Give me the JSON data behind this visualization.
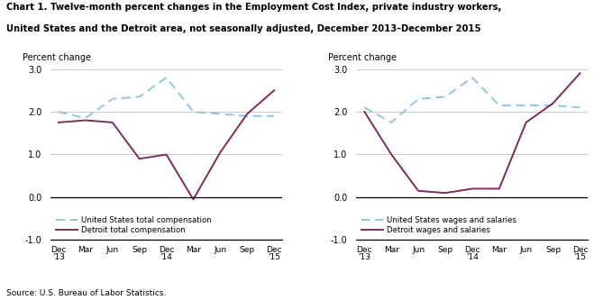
{
  "title_line1": "Chart 1. Twelve-month percent changes in the Employment Cost Index, private industry workers,",
  "title_line2": "United States and the Detroit area, not seasonally adjusted, December 2013–December 2015",
  "ylabel": "Percent change",
  "source": "Source: U.S. Bureau of Labor Statistics.",
  "xlabels": [
    "Dec\n'13",
    "Mar",
    "Jun",
    "Sep",
    "Dec\n'14",
    "Mar",
    "Jun",
    "Sep",
    "Dec\n'15"
  ],
  "ylim": [
    -1.0,
    3.0
  ],
  "yticks": [
    -1.0,
    0.0,
    1.0,
    2.0,
    3.0
  ],
  "ytick_labels": [
    "-1.0",
    "0.0",
    "1.0",
    "2.0",
    "3.0"
  ],
  "us_total_comp": [
    2.0,
    1.85,
    2.3,
    2.35,
    2.8,
    2.0,
    1.95,
    1.9,
    1.9
  ],
  "detroit_total_comp": [
    1.75,
    1.8,
    1.75,
    0.9,
    1.0,
    -0.05,
    1.05,
    1.95,
    2.5
  ],
  "us_wages": [
    2.1,
    1.75,
    2.3,
    2.35,
    2.8,
    2.15,
    2.15,
    2.15,
    2.1
  ],
  "detroit_wages": [
    2.0,
    1.0,
    0.15,
    0.1,
    0.2,
    0.2,
    1.75,
    2.2,
    2.9
  ],
  "us_color": "#92C5DE",
  "detroit_color": "#7B2D5E",
  "us_linestyle": "--",
  "detroit_linestyle": "-",
  "linewidth": 1.4,
  "legend1_us": "United States total compensation",
  "legend1_detroit": "Detroit total compensation",
  "legend2_us": "United States wages and salaries",
  "legend2_detroit": "Detroit wages and salaries",
  "background_color": "#FFFFFF",
  "plot_bg": "#FFFFFF"
}
